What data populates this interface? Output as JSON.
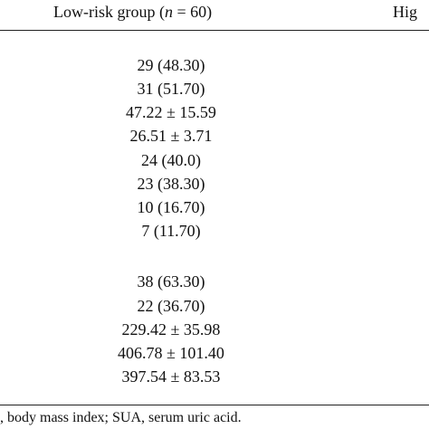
{
  "table": {
    "header": {
      "low_risk_prefix": "Low-risk group (",
      "low_risk_n": "n",
      "low_risk_suffix": " = 60)",
      "high_risk": "Hig"
    },
    "low_risk_values": [
      "29 (48.30)",
      "31 (51.70)",
      "47.22 ± 15.59",
      "26.51 ± 3.71",
      "24 (40.0)",
      "23 (38.30)",
      "10 (16.70)",
      "7 (11.70)",
      "38 (63.30)",
      "22 (36.70)",
      "229.42 ± 35.98",
      "406.78 ± 101.40",
      "397.54 ± 83.53"
    ]
  },
  "footnote": ", body mass index; SUA, serum uric acid."
}
